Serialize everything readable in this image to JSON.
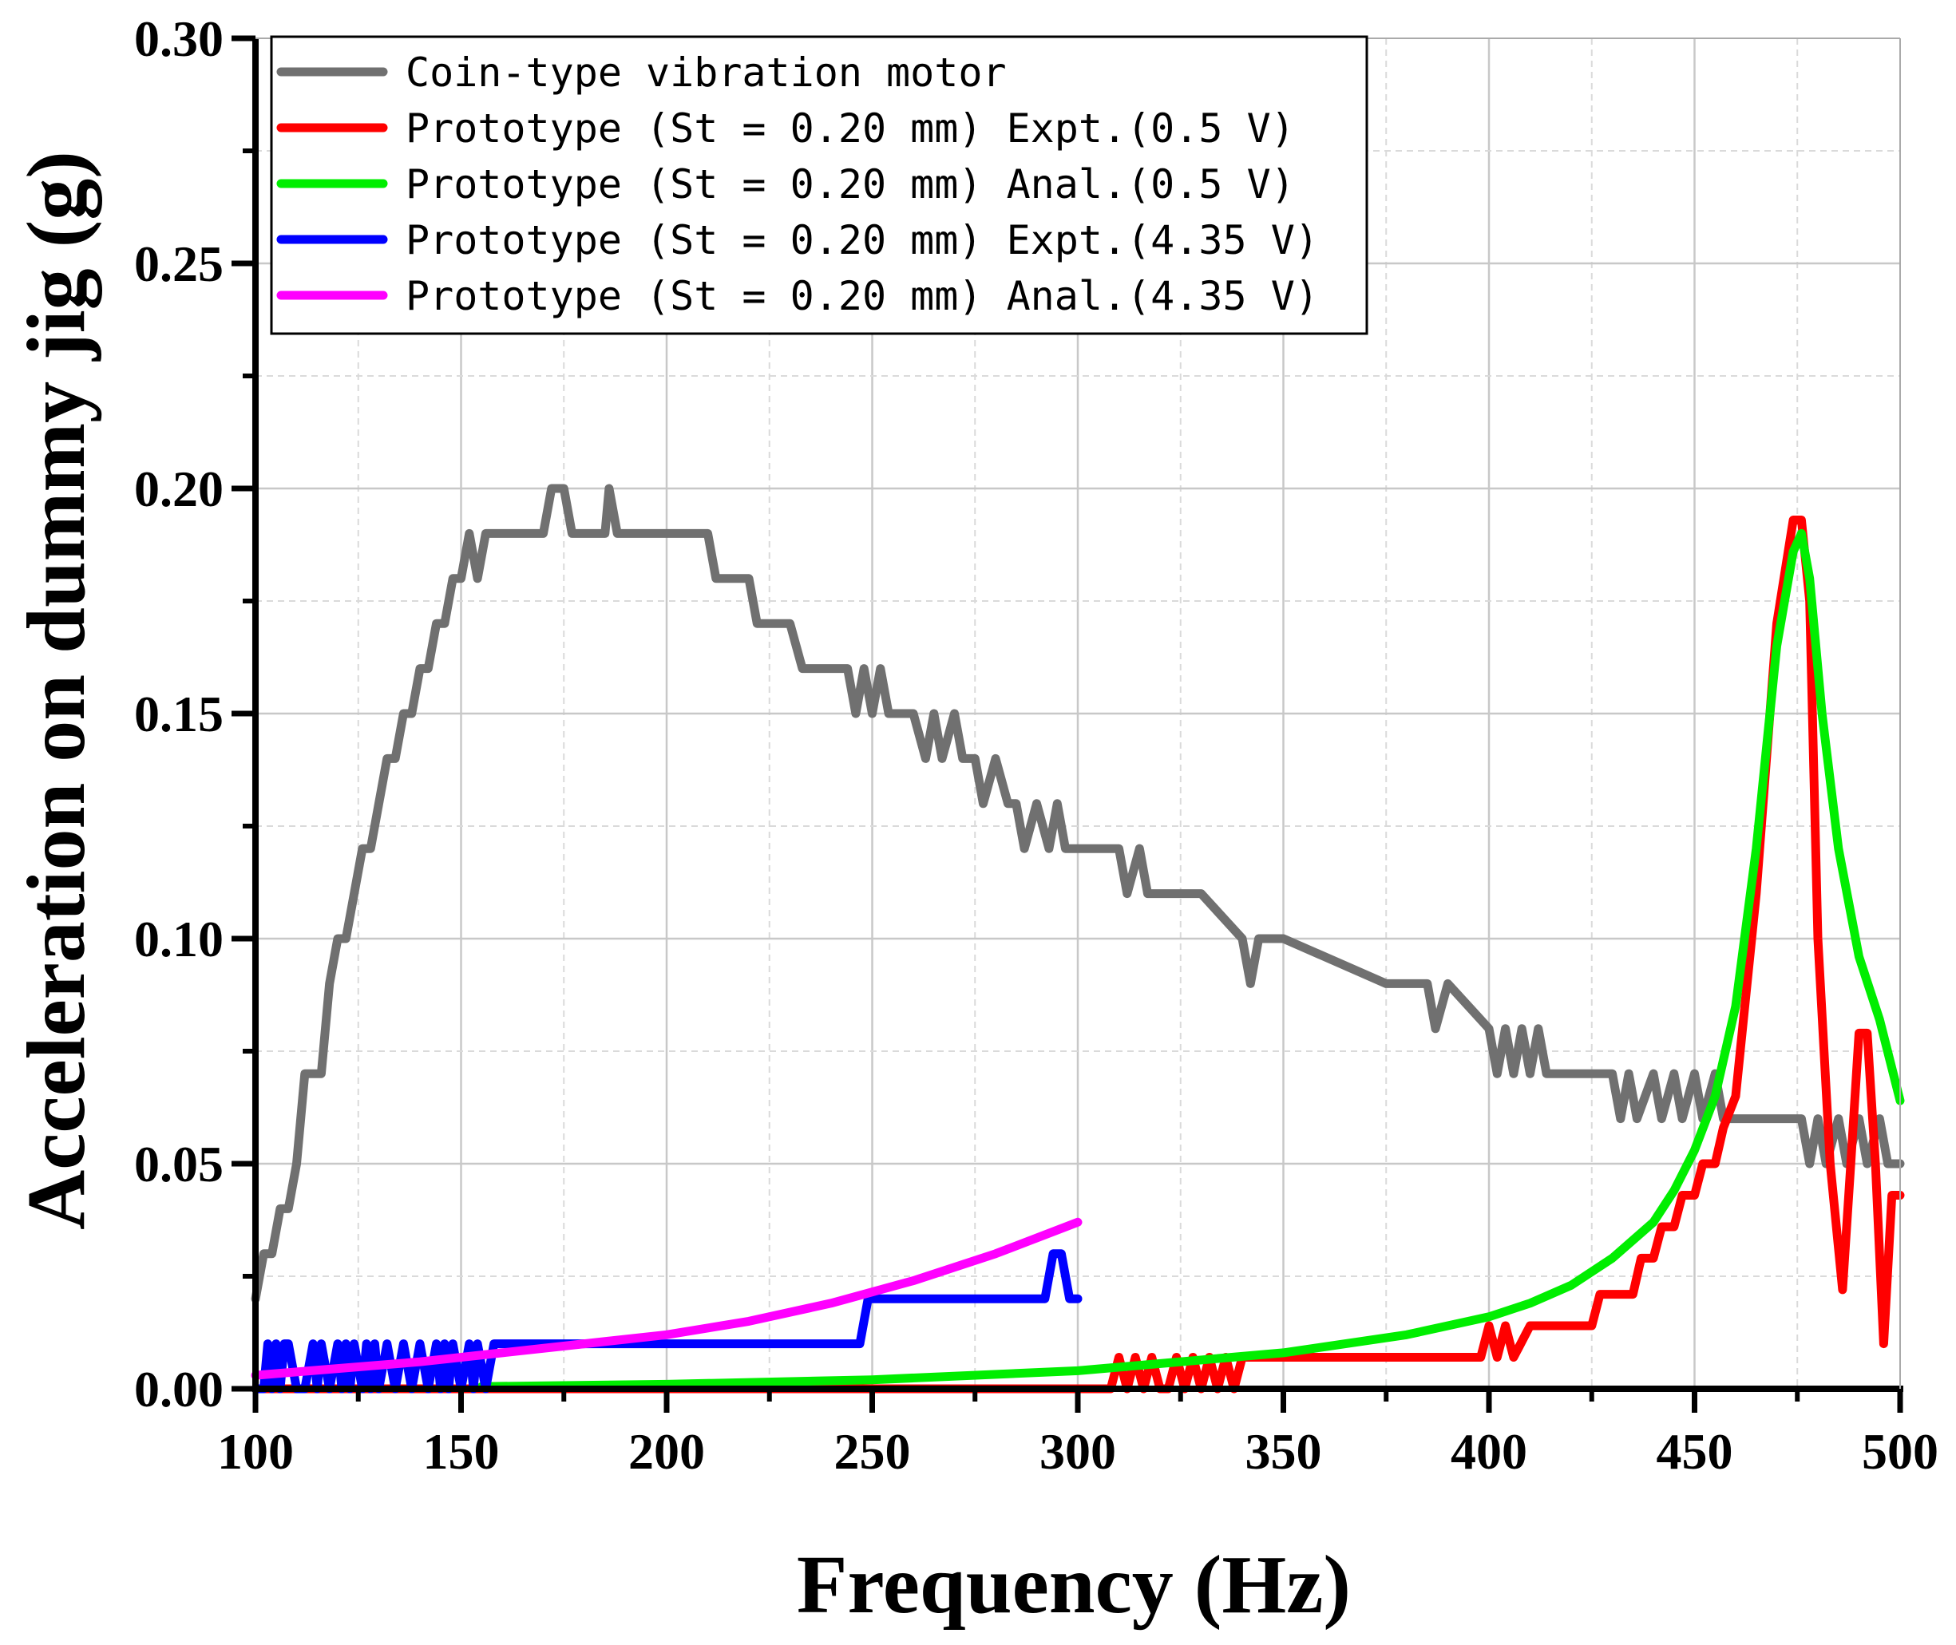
{
  "chart_data": {
    "type": "line",
    "title": "",
    "xlabel": "Frequency (Hz)",
    "ylabel": "Acceleration on dummy jig (g)",
    "xlim": [
      100,
      500
    ],
    "ylim": [
      0.0,
      0.3
    ],
    "xticks": [
      100,
      150,
      200,
      250,
      300,
      350,
      400,
      450,
      500
    ],
    "xtick_labels": [
      "100",
      "150",
      "200",
      "250",
      "300",
      "350",
      "400",
      "450",
      "500"
    ],
    "yticks": [
      0.0,
      0.05,
      0.1,
      0.15,
      0.2,
      0.25,
      0.3
    ],
    "ytick_labels": [
      "0.00",
      "0.05",
      "0.10",
      "0.15",
      "0.20",
      "0.25",
      "0.30"
    ],
    "grid": true,
    "legend_position": "top-left",
    "series": [
      {
        "name": "Coin-type vibration motor",
        "color": "#707070",
        "x": [
          100,
          102,
          104,
          106,
          108,
          110,
          112,
          116,
          118,
          120,
          122,
          124,
          126,
          128,
          130,
          132,
          134,
          136,
          138,
          140,
          142,
          144,
          146,
          148,
          150,
          152,
          154,
          156,
          158,
          160,
          170,
          172,
          175,
          177,
          185,
          186,
          188,
          200,
          210,
          212,
          220,
          222,
          230,
          233,
          235,
          240,
          244,
          246,
          248,
          250,
          252,
          254,
          256,
          260,
          263,
          265,
          267,
          270,
          272,
          275,
          277,
          280,
          283,
          285,
          287,
          290,
          293,
          295,
          297,
          300,
          310,
          312,
          315,
          317,
          320,
          330,
          340,
          342,
          344,
          350,
          375,
          385,
          387,
          390,
          400,
          402,
          404,
          406,
          408,
          410,
          412,
          414,
          420,
          430,
          432,
          434,
          436,
          440,
          442,
          445,
          447,
          450,
          452,
          455,
          457,
          460,
          470,
          476,
          478,
          480,
          482,
          485,
          487,
          490,
          492,
          495,
          497,
          500
        ],
        "y": [
          0.02,
          0.03,
          0.03,
          0.04,
          0.04,
          0.05,
          0.07,
          0.07,
          0.09,
          0.1,
          0.1,
          0.11,
          0.12,
          0.12,
          0.13,
          0.14,
          0.14,
          0.15,
          0.15,
          0.16,
          0.16,
          0.17,
          0.17,
          0.18,
          0.18,
          0.19,
          0.18,
          0.19,
          0.19,
          0.19,
          0.19,
          0.2,
          0.2,
          0.19,
          0.19,
          0.2,
          0.19,
          0.19,
          0.19,
          0.18,
          0.18,
          0.17,
          0.17,
          0.16,
          0.16,
          0.16,
          0.16,
          0.15,
          0.16,
          0.15,
          0.16,
          0.15,
          0.15,
          0.15,
          0.14,
          0.15,
          0.14,
          0.15,
          0.14,
          0.14,
          0.13,
          0.14,
          0.13,
          0.13,
          0.12,
          0.13,
          0.12,
          0.13,
          0.12,
          0.12,
          0.12,
          0.11,
          0.12,
          0.11,
          0.11,
          0.11,
          0.1,
          0.09,
          0.1,
          0.1,
          0.09,
          0.09,
          0.08,
          0.09,
          0.08,
          0.07,
          0.08,
          0.07,
          0.08,
          0.07,
          0.08,
          0.07,
          0.07,
          0.07,
          0.06,
          0.07,
          0.06,
          0.07,
          0.06,
          0.07,
          0.06,
          0.07,
          0.06,
          0.07,
          0.06,
          0.06,
          0.06,
          0.06,
          0.05,
          0.06,
          0.05,
          0.06,
          0.05,
          0.06,
          0.05,
          0.06,
          0.05,
          0.05
        ]
      },
      {
        "name": "Prototype (St = 0.20 mm) Expt.(0.5 V)",
        "color": "#ff0000",
        "x": [
          100,
          150,
          200,
          250,
          300,
          308,
          310,
          312,
          314,
          316,
          318,
          320,
          322,
          324,
          326,
          328,
          330,
          332,
          334,
          336,
          338,
          340,
          342,
          360,
          380,
          398,
          400,
          402,
          404,
          406,
          410,
          425,
          427,
          435,
          437,
          440,
          442,
          445,
          447,
          450,
          452,
          455,
          457,
          460,
          465,
          470,
          474,
          476,
          478,
          480,
          483,
          486,
          488,
          490,
          492,
          494,
          496,
          498,
          500
        ],
        "y": [
          0.0,
          0.0,
          0.0,
          0.0,
          0.0,
          0.0,
          0.007,
          0.0,
          0.007,
          0.0,
          0.007,
          0.0,
          0.0,
          0.007,
          0.0,
          0.007,
          0.0,
          0.007,
          0.0,
          0.007,
          0.0,
          0.007,
          0.007,
          0.007,
          0.007,
          0.007,
          0.014,
          0.007,
          0.014,
          0.007,
          0.014,
          0.014,
          0.021,
          0.021,
          0.029,
          0.029,
          0.036,
          0.036,
          0.043,
          0.043,
          0.05,
          0.05,
          0.058,
          0.065,
          0.11,
          0.17,
          0.193,
          0.193,
          0.175,
          0.1,
          0.05,
          0.022,
          0.05,
          0.079,
          0.079,
          0.05,
          0.01,
          0.043,
          0.043
        ]
      },
      {
        "name": "Prototype (St = 0.20 mm) Anal.(0.5 V)",
        "color": "#00ee00",
        "x": [
          155,
          200,
          250,
          300,
          350,
          380,
          400,
          410,
          420,
          430,
          440,
          445,
          450,
          455,
          460,
          465,
          470,
          474,
          476,
          478,
          481,
          485,
          490,
          495,
          500
        ],
        "y": [
          0.0005,
          0.001,
          0.002,
          0.004,
          0.008,
          0.012,
          0.016,
          0.019,
          0.023,
          0.029,
          0.037,
          0.044,
          0.053,
          0.065,
          0.085,
          0.12,
          0.165,
          0.186,
          0.19,
          0.18,
          0.15,
          0.12,
          0.096,
          0.082,
          0.064
        ]
      },
      {
        "name": "Prototype (St = 0.20 mm) Expt.(4.35 V)",
        "color": "#0000ff",
        "x": [
          100,
          102,
          103,
          104,
          105,
          106,
          107,
          108,
          110,
          112,
          114,
          115,
          116,
          118,
          120,
          121,
          122,
          123,
          124,
          126,
          127,
          128,
          129,
          130,
          132,
          134,
          136,
          138,
          140,
          142,
          144,
          145,
          146,
          147,
          148,
          150,
          152,
          153,
          154,
          156,
          158,
          160,
          247,
          249,
          290,
          292,
          294,
          296,
          298,
          300
        ],
        "y": [
          0.0,
          0.0,
          0.01,
          0.0,
          0.01,
          0.0,
          0.01,
          0.01,
          0.0,
          0.0,
          0.01,
          0.0,
          0.01,
          0.0,
          0.01,
          0.0,
          0.01,
          0.0,
          0.01,
          0.0,
          0.01,
          0.0,
          0.01,
          0.0,
          0.01,
          0.0,
          0.01,
          0.0,
          0.01,
          0.0,
          0.01,
          0.0,
          0.01,
          0.0,
          0.01,
          0.0,
          0.01,
          0.0,
          0.01,
          0.0,
          0.01,
          0.01,
          0.01,
          0.02,
          0.02,
          0.02,
          0.03,
          0.03,
          0.02,
          0.02
        ]
      },
      {
        "name": "Prototype (St = 0.20 mm) Anal.(4.35 V)",
        "color": "#ff00ff",
        "x": [
          100,
          120,
          140,
          160,
          180,
          200,
          220,
          240,
          260,
          280,
          300
        ],
        "y": [
          0.003,
          0.0045,
          0.006,
          0.008,
          0.01,
          0.012,
          0.015,
          0.019,
          0.024,
          0.03,
          0.037
        ]
      }
    ]
  }
}
